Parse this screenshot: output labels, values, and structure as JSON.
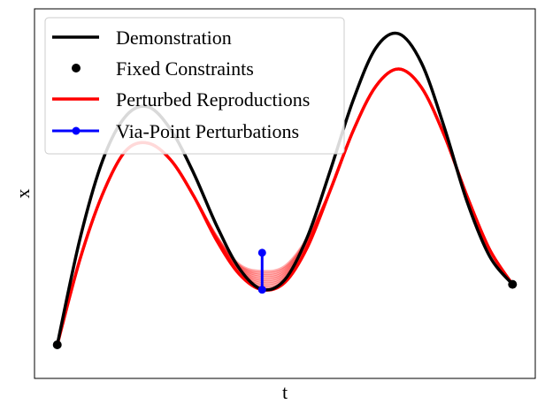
{
  "chart_data": {
    "type": "line",
    "xlabel": "t",
    "ylabel": "x",
    "xlim": [
      -0.05,
      1.05
    ],
    "ylim": [
      -0.1,
      1.0
    ],
    "grid": false,
    "ticks": false,
    "legend": {
      "placement": "top-left",
      "entries": [
        {
          "label": "Demonstration",
          "style": "line",
          "color": "#000000"
        },
        {
          "label": "Fixed Constraints",
          "style": "marker",
          "color": "#000000"
        },
        {
          "label": "Perturbed Reproductions",
          "style": "line",
          "color": "#ff0000"
        },
        {
          "label": "Via-Point Perturbations",
          "style": "line-marker",
          "color": "#0000ff"
        }
      ]
    },
    "demonstration": {
      "color": "#000000",
      "x": [
        0.0,
        0.05,
        0.1,
        0.15,
        0.2,
        0.25,
        0.3,
        0.35,
        0.4,
        0.45,
        0.5,
        0.55,
        0.6,
        0.65,
        0.7,
        0.75,
        0.8,
        0.85,
        0.9,
        0.95,
        1.0
      ],
      "y": [
        0.0,
        0.316,
        0.55,
        0.68,
        0.708,
        0.639,
        0.51,
        0.355,
        0.227,
        0.165,
        0.194,
        0.323,
        0.52,
        0.728,
        0.884,
        0.926,
        0.839,
        0.648,
        0.427,
        0.263,
        0.18
      ]
    },
    "reproductions": {
      "color": "#ff0000",
      "x": [
        0.0,
        0.05,
        0.1,
        0.15,
        0.2,
        0.25,
        0.3,
        0.35,
        0.4,
        0.45,
        0.5,
        0.55,
        0.6,
        0.65,
        0.7,
        0.75,
        0.8,
        0.85,
        0.9,
        0.95,
        1.0
      ],
      "y_bottom": [
        0.0,
        0.255,
        0.45,
        0.577,
        0.6,
        0.549,
        0.442,
        0.311,
        0.21,
        0.164,
        0.186,
        0.292,
        0.461,
        0.637,
        0.77,
        0.821,
        0.766,
        0.624,
        0.443,
        0.283,
        0.18
      ],
      "y_top": [
        0.0,
        0.255,
        0.45,
        0.577,
        0.6,
        0.549,
        0.442,
        0.323,
        0.239,
        0.219,
        0.234,
        0.32,
        0.461,
        0.637,
        0.77,
        0.821,
        0.766,
        0.624,
        0.443,
        0.283,
        0.18
      ],
      "count": 10
    },
    "fixed_constraints": {
      "color": "#000000",
      "points": [
        {
          "x": 0.0,
          "y": 0.0
        },
        {
          "x": 1.0,
          "y": 0.18
        }
      ]
    },
    "via_point_perturbation": {
      "color": "#0000ff",
      "x": 0.45,
      "y_low": 0.164,
      "y_high": 0.274
    }
  }
}
